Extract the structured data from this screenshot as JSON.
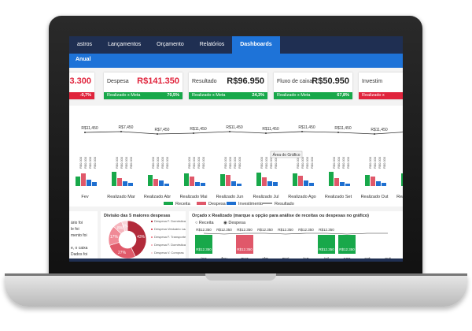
{
  "nav": {
    "tabs": [
      "astros",
      "Lançamentos",
      "Orçamento",
      "Relatórios",
      "Dashboards"
    ],
    "active_tab": "Dashboards"
  },
  "subbar": {
    "label": "Anual"
  },
  "kpis": [
    {
      "label": "",
      "value": "3.300",
      "bar_left": "",
      "bar_right": "-0,7%",
      "value_color": "#e0243c",
      "bar_color": "#e0243c"
    },
    {
      "label": "Despesa",
      "value": "R$141.350",
      "bar_left": "Realizado x Meta",
      "bar_right": "70,5%",
      "value_color": "#e0243c",
      "bar_color": "#18a84a"
    },
    {
      "label": "Resultado",
      "value": "R$96.950",
      "bar_left": "Realizado x Meta",
      "bar_right": "24,3%",
      "value_color": "#222222",
      "bar_color": "#18a84a"
    },
    {
      "label": "Fluxo de caixa",
      "value": "R$50.950",
      "bar_left": "Realizado x Meta",
      "bar_right": "67,8%",
      "value_color": "#222222",
      "bar_color": "#18a84a"
    },
    {
      "label": "Investim",
      "value": "",
      "bar_left": "Realizado x",
      "bar_right": "",
      "value_color": "#222222",
      "bar_color": "#e0243c"
    }
  ],
  "main_chart": {
    "tooltip": "Área do Gráfico",
    "top_labels": [
      "R$11,450",
      "R$7,450",
      "R$7,450",
      "R$11,450",
      "R$11,450",
      "R$11,450",
      "R$11,450",
      "R$11,450",
      "R$11,450"
    ],
    "categories": [
      "Fev",
      "Realizado Mar",
      "Realizado Abr",
      "Realizado Mai",
      "Realizado Jun",
      "Realizado Jul",
      "Realizado Ago",
      "Realizado Set",
      "Realizado Out",
      "Realizado Nov"
    ],
    "legend": [
      "Receita",
      "Despesa",
      "Investimento",
      "Resultado"
    ],
    "colors": {
      "receita": "#18a84a",
      "despesa": "#e0586a",
      "investimento": "#1e6fd0",
      "resultado": "#333333"
    }
  },
  "notes_panel": {
    "lines": [
      "ário foi",
      "le foi",
      "mento foi",
      "",
      "e, o caixa",
      "Dados foi",
      "ldar de"
    ]
  },
  "donut_panel": {
    "title": "Divisão das 5 maiores despesas",
    "slices": [
      {
        "label": "43%",
        "value": 43,
        "color": "#b22a3a"
      },
      {
        "label": "27%",
        "value": 27,
        "color": "#e05a6a"
      },
      {
        "label": "17%",
        "value": 17,
        "color": "#f08a96"
      },
      {
        "label": "8%",
        "value": 8,
        "color": "#f6b6be"
      },
      {
        "label": "5%",
        "value": 5,
        "color": "#f9d4d8"
      }
    ],
    "legend": [
      "Despesa F. Domésticas",
      "Despesa Vestuário Lazer",
      "Despesa F. Transporte",
      "Despesa F. Domésticas",
      "Despesa V. Compras"
    ]
  },
  "orcado_panel": {
    "title": "Orçado x Realizado (marque a opção para análise de receitas ou despesas no gráfico)",
    "radio_options": [
      "Receita",
      "Despesa"
    ],
    "selected_option": "Despesa",
    "line_labels": [
      "R$12.350",
      "R$12.350",
      "R$12.350",
      "R$12.350",
      "R$12.350",
      "R$12.350",
      "R$12.350"
    ],
    "months": [
      "jan",
      "fev",
      "mar",
      "abr",
      "mai",
      "jun",
      "jul",
      "ago",
      "set",
      "out"
    ],
    "bars": [
      {
        "month": "jan",
        "value": 12350,
        "label": "R$12.350",
        "color": "#18a84a"
      },
      {
        "month": "fev",
        "value": 0,
        "label": "",
        "color": "#18a84a"
      },
      {
        "month": "mar",
        "value": 12350,
        "label": "R$12.350",
        "color": "#e0586a"
      },
      {
        "month": "abr",
        "value": 0,
        "label": "",
        "color": "#18a84a"
      },
      {
        "month": "mai",
        "value": 0,
        "label": "",
        "color": "#18a84a"
      },
      {
        "month": "jun",
        "value": 0,
        "label": "",
        "color": "#18a84a"
      },
      {
        "month": "jul",
        "value": 12350,
        "label": "R$12.350",
        "color": "#18a84a"
      },
      {
        "month": "ago",
        "value": 12350,
        "label": "R$12.350",
        "color": "#18a84a"
      },
      {
        "month": "set",
        "value": 0,
        "label": "",
        "color": "#18a84a"
      },
      {
        "month": "out",
        "value": 0,
        "label": "",
        "color": "#18a84a"
      }
    ]
  }
}
